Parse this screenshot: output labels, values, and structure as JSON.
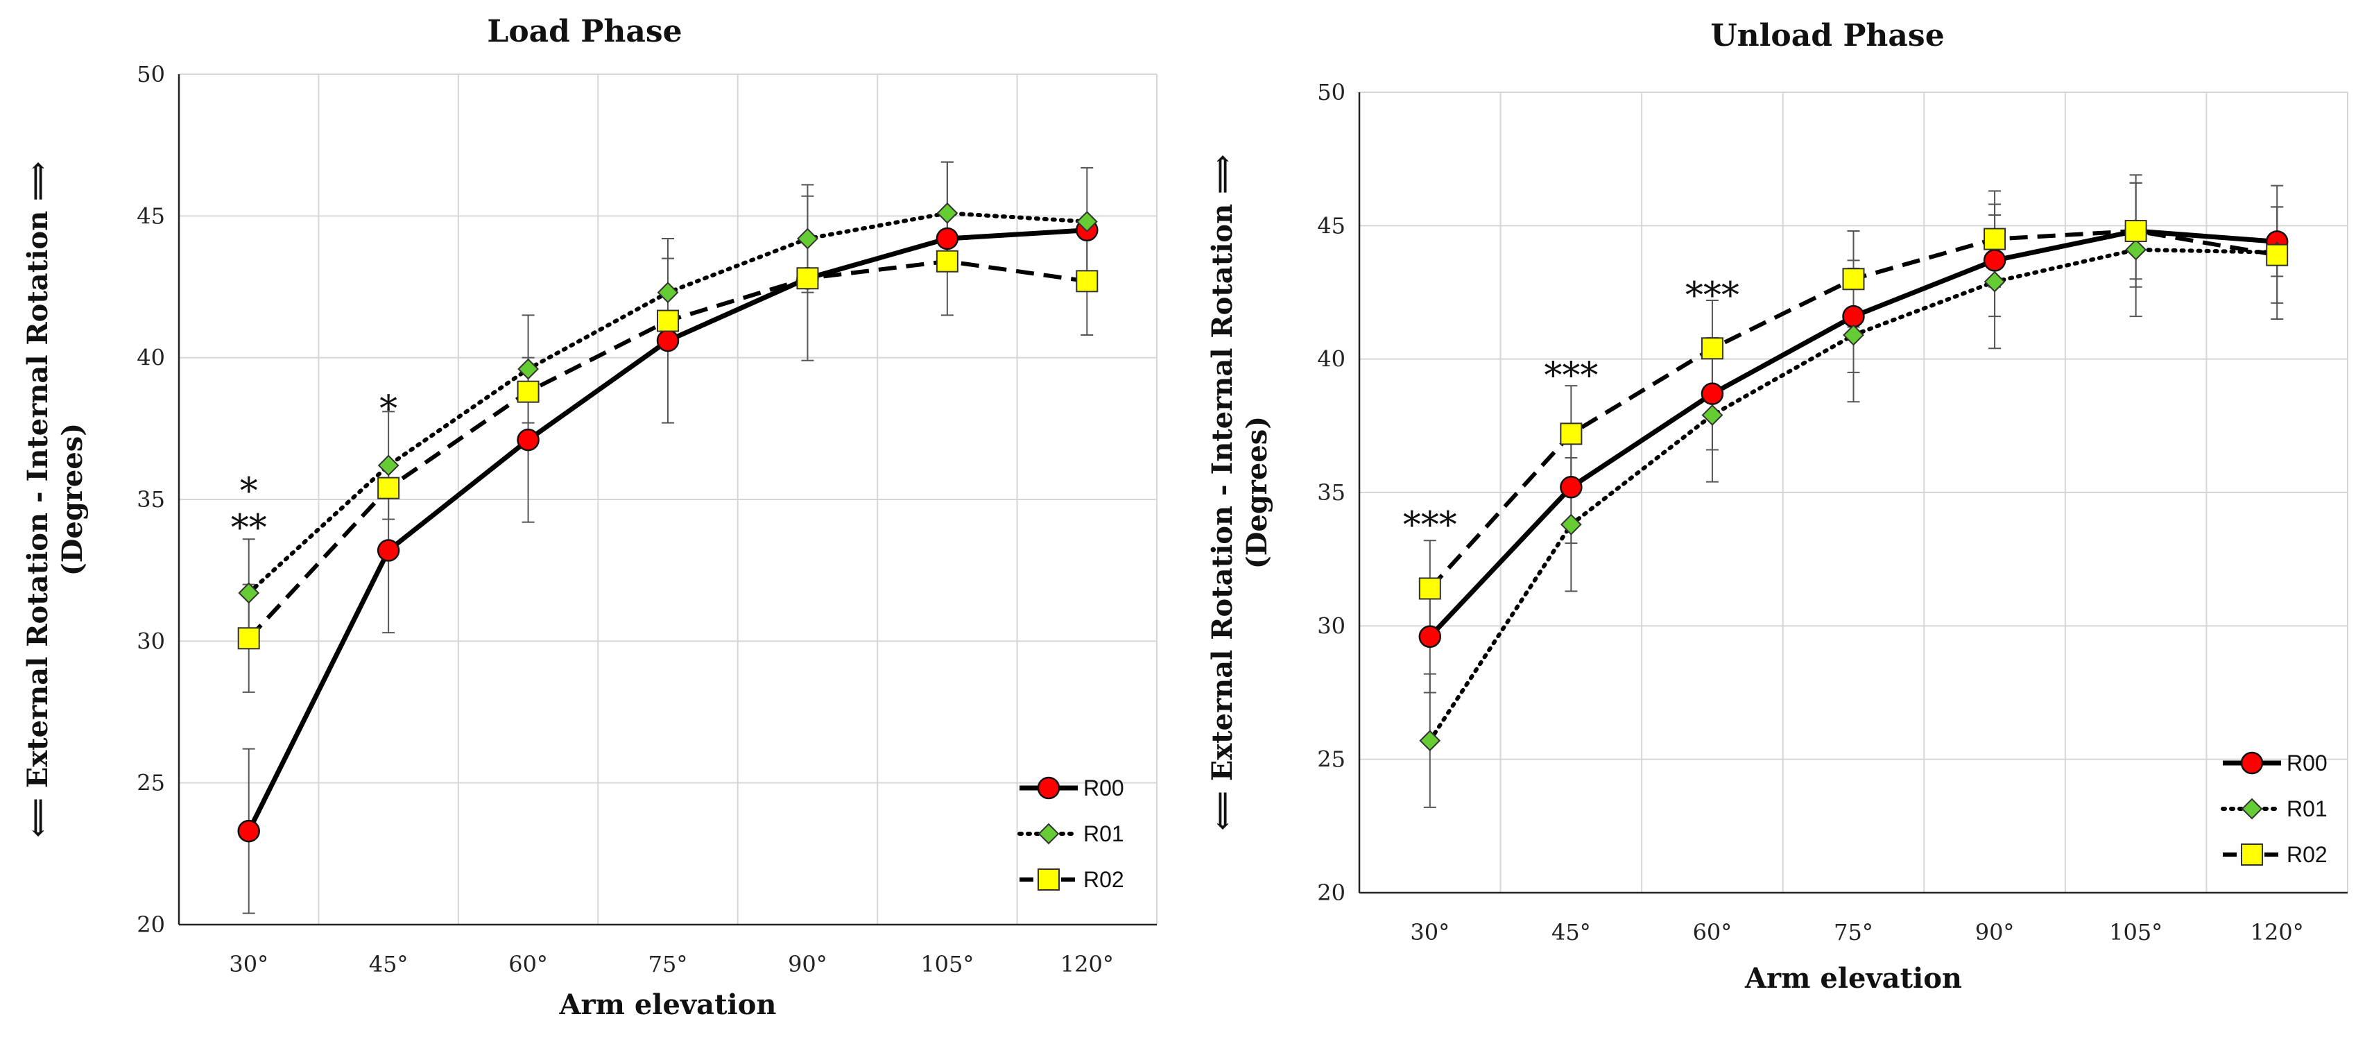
{
  "chart_data": [
    {
      "type": "line",
      "title": "Load Phase",
      "xlabel": "Arm elevation",
      "ylabel_line1": "⟸ External Rotation - Internal Rotation ⟹",
      "ylabel_line2": "(Degrees)",
      "categories": [
        "30°",
        "45°",
        "60°",
        "75°",
        "90°",
        "105°",
        "120°"
      ],
      "ylim": [
        20,
        50
      ],
      "yticks": [
        "20",
        "25",
        "30",
        "35",
        "40",
        "45",
        "50"
      ],
      "grid": true,
      "legend_position": "bottom-right",
      "series": [
        {
          "name": "R00",
          "values": [
            23.3,
            33.2,
            37.1,
            40.6,
            42.8,
            44.2,
            44.5
          ],
          "errors": [
            2.9,
            2.9,
            2.9,
            2.9,
            2.9,
            2.7,
            0
          ],
          "style": "solid",
          "marker": "circle",
          "color": "#ff0000"
        },
        {
          "name": "R01",
          "values": [
            31.7,
            36.2,
            39.6,
            42.3,
            44.2,
            45.1,
            44.8
          ],
          "errors": [
            1.9,
            1.9,
            1.9,
            1.9,
            1.9,
            1.8,
            1.9
          ],
          "style": "dotted",
          "marker": "diamond",
          "color": "#66cc33"
        },
        {
          "name": "R02",
          "values": [
            30.1,
            35.4,
            38.8,
            41.3,
            42.8,
            43.4,
            42.7
          ],
          "errors": [
            1.9,
            0,
            0,
            0,
            0,
            0,
            1.9
          ],
          "style": "dashed",
          "marker": "square",
          "color": "#ffff00"
        }
      ],
      "annotations": [
        {
          "text": "*",
          "category": "30°",
          "y": 35.5
        },
        {
          "text": "**",
          "category": "30°",
          "y": 34.2
        },
        {
          "text": "*",
          "category": "45°",
          "y": 38.4
        }
      ]
    },
    {
      "type": "line",
      "title": "Unload Phase",
      "xlabel": "Arm elevation",
      "ylabel_line1": "⟸ External Rotation - Internal Rotation ⟹",
      "ylabel_line2": "(Degrees)",
      "categories": [
        "30°",
        "45°",
        "60°",
        "75°",
        "90°",
        "105°",
        "120°"
      ],
      "ylim": [
        20,
        50
      ],
      "yticks": [
        "20",
        "25",
        "30",
        "35",
        "40",
        "45",
        "50"
      ],
      "grid": true,
      "legend_position": "bottom-right",
      "series": [
        {
          "name": "R00",
          "values": [
            29.6,
            35.2,
            38.7,
            41.6,
            43.7,
            44.8,
            44.4
          ],
          "errors": [
            2.1,
            2.1,
            2.1,
            2.1,
            2.1,
            2.1,
            1.3
          ],
          "style": "solid",
          "marker": "circle",
          "color": "#ff0000"
        },
        {
          "name": "R01",
          "values": [
            25.7,
            33.8,
            37.9,
            40.9,
            42.9,
            44.1,
            44.0
          ],
          "errors": [
            2.5,
            2.5,
            2.5,
            2.5,
            2.5,
            2.5,
            2.5
          ],
          "style": "dotted",
          "marker": "diamond",
          "color": "#66cc33"
        },
        {
          "name": "R02",
          "values": [
            31.4,
            37.2,
            40.4,
            43.0,
            44.5,
            44.8,
            43.9
          ],
          "errors": [
            1.8,
            1.8,
            1.8,
            1.8,
            1.8,
            1.8,
            1.8
          ],
          "style": "dashed",
          "marker": "square",
          "color": "#ffff00"
        }
      ],
      "annotations": [
        {
          "text": "***",
          "category": "30°",
          "y": 34.0
        },
        {
          "text": "***",
          "category": "45°",
          "y": 39.6
        },
        {
          "text": "***",
          "category": "60°",
          "y": 42.6
        }
      ]
    }
  ]
}
